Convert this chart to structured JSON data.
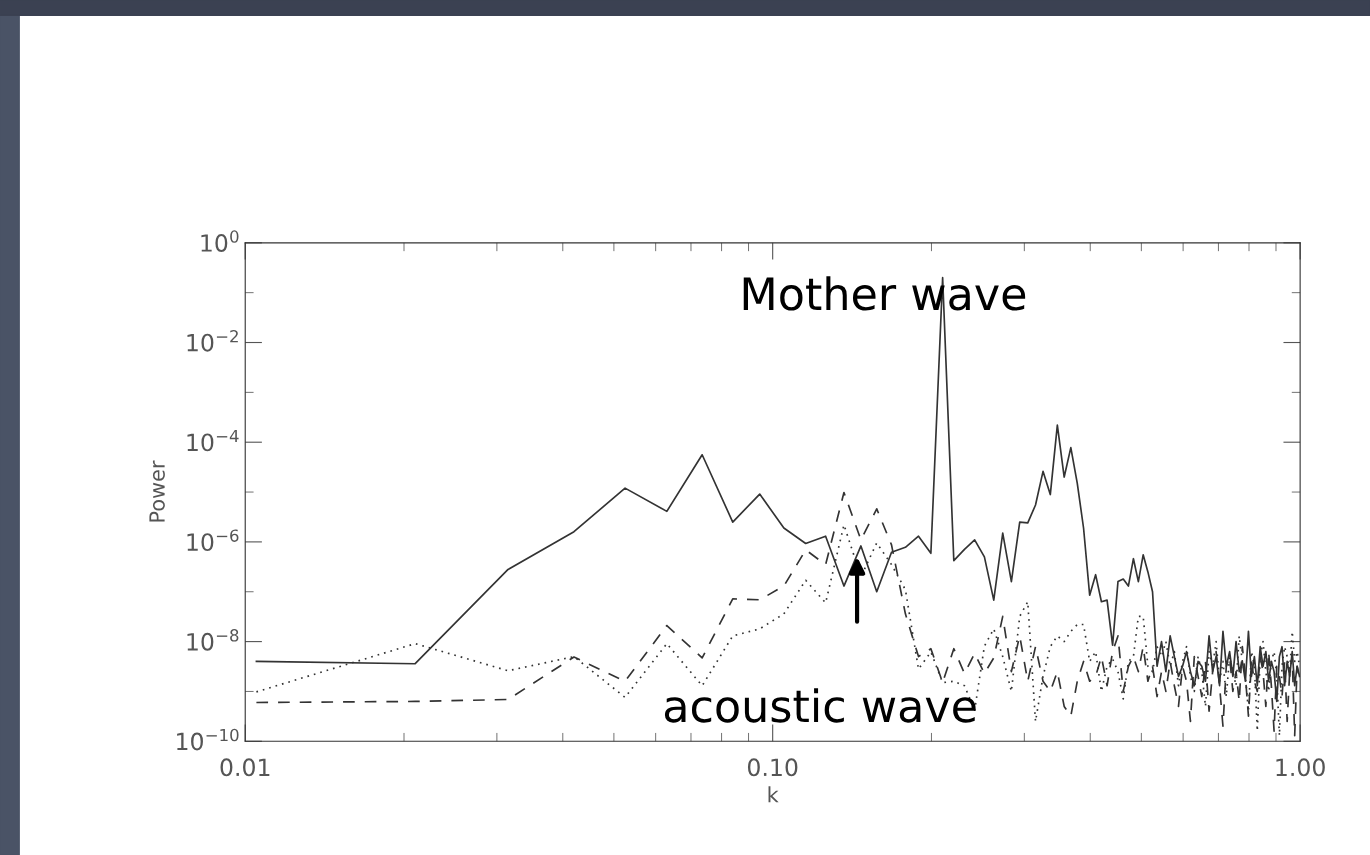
{
  "chart_data": {
    "type": "line",
    "xlabel": "k",
    "ylabel": "Power",
    "log": "xy",
    "xlim": [
      0.01,
      1
    ],
    "ylim": [
      1e-10,
      1
    ],
    "xticks": [
      {
        "value": 0.01,
        "label": "0.01"
      },
      {
        "value": 0.1,
        "label": "0.10"
      },
      {
        "value": 1,
        "label": "1.00"
      }
    ],
    "yticks": [
      {
        "value": 1e-10,
        "label": "10$^{−10}$"
      },
      {
        "value": 1e-08,
        "label": "10$^{−8}$"
      },
      {
        "value": 1e-06,
        "label": "10$^{−6}$"
      },
      {
        "value": 0.0001,
        "label": "10$^{−4}$"
      },
      {
        "value": 0.01,
        "label": "10$^{−2}$"
      },
      {
        "value": 1,
        "label": "10$^{0}$"
      }
    ],
    "marker": "none",
    "annotations": [
      "Mother wave",
      "acoustic wave"
    ],
    "x": [
      0.0105,
      0.021,
      0.0315,
      0.042,
      0.0525,
      0.063,
      0.0735,
      0.084,
      0.0945,
      0.105,
      0.1155,
      0.126,
      0.1365,
      0.147,
      0.1575,
      0.168,
      0.1785,
      0.189,
      0.1995,
      0.21,
      0.2205,
      0.231,
      0.2415,
      0.252,
      0.2625,
      0.273,
      0.2835,
      0.294,
      0.3045,
      0.315,
      0.3255,
      0.336,
      0.3465,
      0.357,
      0.3675,
      0.378,
      0.3885,
      0.399,
      0.4095,
      0.42,
      0.4305,
      0.441,
      0.4515,
      0.462,
      0.4725,
      0.483,
      0.4935,
      0.504,
      0.5145,
      0.525,
      0.5355,
      0.546,
      0.5565,
      0.567,
      0.5775,
      0.588,
      0.5985,
      0.609,
      0.6195,
      0.63,
      0.6405,
      0.651,
      0.6615,
      0.672,
      0.6825,
      0.693,
      0.7035,
      0.714,
      0.7245,
      0.735,
      0.7455,
      0.756,
      0.7665,
      0.777,
      0.7875,
      0.798,
      0.8085,
      0.819,
      0.8295,
      0.84,
      0.8505,
      0.861,
      0.8715,
      0.882,
      0.8925,
      0.903,
      0.9135,
      0.924,
      0.9345,
      0.945,
      0.9555,
      0.966,
      0.9765,
      0.987,
      0.9975
    ],
    "series": [
      {
        "color": "#333333",
        "line_style": "solid",
        "values": [
          4e-09,
          3.6e-09,
          2.8e-07,
          1.6e-06,
          1.2e-05,
          4.1e-06,
          5.6e-05,
          2.5e-06,
          9.1e-06,
          1.9e-06,
          9.3e-07,
          1.3e-06,
          1.3e-07,
          8.3e-07,
          1e-07,
          6.2e-07,
          7.8e-07,
          1.3e-06,
          5.9e-07,
          0.2,
          4.2e-07,
          7.1e-07,
          1.1e-06,
          5e-07,
          6.8e-08,
          1.5e-06,
          1.6e-07,
          2.5e-06,
          2.4e-06,
          5.5e-06,
          2.6e-05,
          8.9e-06,
          0.00022,
          2e-05,
          7.8e-05,
          1.5e-05,
          1.9e-06,
          8.5e-08,
          2.2e-07,
          6.3e-08,
          6.8e-08,
          8.5e-09,
          1.6e-07,
          1.8e-07,
          1.3e-07,
          4.6e-07,
          1.6e-07,
          5.5e-07,
          2.5e-07,
          1e-07,
          3.2e-09,
          1e-08,
          2.5e-09,
          1.3e-08,
          5e-09,
          2e-09,
          3.2e-09,
          6.3e-09,
          2.5e-09,
          1.3e-09,
          4e-09,
          3.2e-09,
          1.6e-09,
          1.3e-08,
          2.5e-09,
          5e-09,
          1.3e-09,
          1.6e-08,
          3.2e-09,
          6.3e-09,
          2e-09,
          1e-08,
          2.5e-09,
          4e-09,
          1.6e-09,
          1.6e-08,
          2e-09,
          5e-09,
          1.3e-09,
          7.9e-09,
          3.2e-09,
          6.3e-09,
          1.6e-09,
          4e-09,
          2.5e-09,
          6.3e-10,
          5e-09,
          7.9e-09,
          1.3e-09,
          4e-09,
          2e-09,
          6.3e-09,
          1.3e-09,
          3.2e-09,
          2e-09
        ]
      },
      {
        "color": "#333333",
        "line_style": "dashed",
        "values": [
          6e-10,
          6.3e-10,
          6.9e-10,
          4.9e-09,
          1.6e-09,
          2.1e-08,
          4.7e-09,
          7.2e-08,
          6.9e-08,
          1.3e-07,
          6.9e-07,
          3.5e-07,
          9.8e-06,
          1.1e-06,
          4.6e-06,
          8.7e-07,
          3.6e-08,
          5e-09,
          7.2e-09,
          1.5e-09,
          7.2e-09,
          2.3e-09,
          5.8e-09,
          2.3e-09,
          4.7e-09,
          3.2e-08,
          2.5e-09,
          1.3e-08,
          1.6e-09,
          7.9e-09,
          1.6e-09,
          1e-09,
          2.5e-09,
          5e-10,
          3.2e-10,
          1.6e-09,
          4e-09,
          1.6e-09,
          2e-09,
          5e-09,
          1.3e-09,
          6.3e-09,
          1.3e-08,
          1e-09,
          3.2e-09,
          5e-09,
          2.5e-09,
          7.9e-09,
          1.6e-09,
          3.2e-09,
          7.9e-10,
          2.5e-09,
          1e-09,
          4e-09,
          1.3e-09,
          5e-10,
          3.2e-09,
          1.6e-09,
          2.5e-10,
          5e-09,
          2e-09,
          7.9e-10,
          4e-09,
          4e-10,
          2.5e-09,
          6.3e-09,
          1.3e-09,
          2e-10,
          3.2e-09,
          5e-09,
          1e-09,
          2.5e-09,
          6.3e-10,
          7.9e-09,
          2e-09,
          3.2e-10,
          4e-09,
          1.6e-09,
          1e-09,
          5e-09,
          2.5e-09,
          5e-10,
          6.3e-09,
          1.3e-09,
          1.6e-10,
          3.2e-09,
          2e-09,
          7.9e-10,
          4e-09,
          2.5e-10,
          2.5e-09,
          5e-09,
          1.3e-10,
          3.2e-09,
          1.6e-09
        ]
      },
      {
        "color": "#333333",
        "line_style": "dotted",
        "values": [
          9.8e-10,
          9.1e-09,
          2.6e-09,
          5e-09,
          7.6e-10,
          9.1e-09,
          1.3e-09,
          1.3e-08,
          1.8e-08,
          3.6e-08,
          1.7e-07,
          6e-08,
          2.2e-06,
          2e-07,
          9.5e-07,
          3.5e-07,
          1.1e-07,
          2.8e-09,
          6.2e-09,
          1.5e-09,
          1.6e-09,
          1.3e-09,
          4.2e-10,
          8.1e-09,
          1.8e-08,
          5e-09,
          1e-09,
          3.2e-08,
          6.3e-08,
          2.5e-10,
          2e-09,
          7.9e-09,
          1.3e-08,
          1e-08,
          1.6e-08,
          2.2e-08,
          2.2e-08,
          4e-09,
          6.3e-09,
          1e-09,
          3.2e-09,
          4.5e-09,
          2.5e-09,
          7.1e-10,
          4e-09,
          5e-09,
          3.2e-08,
          3.2e-08,
          3.2e-09,
          2.5e-09,
          7.9e-09,
          5e-09,
          1e-08,
          3.2e-09,
          6.3e-09,
          1.3e-09,
          4e-09,
          7.9e-09,
          2e-09,
          1e-09,
          5e-09,
          2.5e-09,
          5e-10,
          6.3e-09,
          3.2e-09,
          1e-08,
          1.6e-09,
          4e-09,
          7.9e-10,
          5e-09,
          2.5e-09,
          1.3e-09,
          1.3e-08,
          4e-09,
          2e-09,
          4e-10,
          6.3e-09,
          3.2e-09,
          1.6e-10,
          5e-09,
          1e-08,
          2.5e-09,
          1e-09,
          4e-09,
          6.3e-09,
          2e-09,
          1.3e-10,
          3.2e-09,
          7.9e-09,
          5e-09,
          2.5e-09,
          1.6e-08,
          4e-09,
          6.3e-09,
          3.2e-09
        ]
      }
    ]
  }
}
